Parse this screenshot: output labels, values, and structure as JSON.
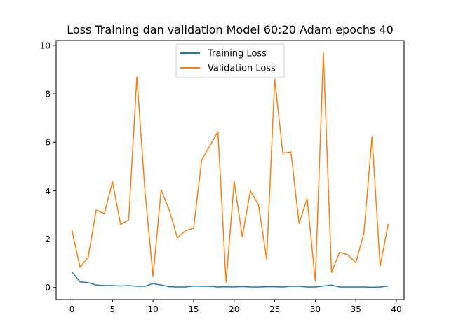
{
  "chart_data": {
    "type": "line",
    "title": "Loss Training dan validation Model 60:20 Adam epochs 40",
    "xlabel": "",
    "ylabel": "",
    "xlim": [
      -1.95,
      40.95
    ],
    "ylim": [
      -0.5,
      10.2
    ],
    "xticks": [
      0,
      5,
      10,
      15,
      20,
      25,
      30,
      35,
      40
    ],
    "yticks": [
      0,
      2,
      4,
      6,
      8,
      10
    ],
    "grid": false,
    "legend": "upper center",
    "x": [
      0,
      1,
      2,
      3,
      4,
      5,
      6,
      7,
      8,
      9,
      10,
      11,
      12,
      13,
      14,
      15,
      16,
      17,
      18,
      19,
      20,
      21,
      22,
      23,
      24,
      25,
      26,
      27,
      28,
      29,
      30,
      31,
      32,
      33,
      34,
      35,
      36,
      37,
      38,
      39
    ],
    "series": [
      {
        "name": "Training Loss",
        "color": "#1f77b4",
        "values": [
          0.64,
          0.23,
          0.2,
          0.1,
          0.08,
          0.08,
          0.06,
          0.08,
          0.05,
          0.05,
          0.16,
          0.1,
          0.03,
          0.02,
          0.02,
          0.06,
          0.05,
          0.05,
          0.02,
          0.03,
          0.02,
          0.04,
          0.02,
          0.02,
          0.03,
          0.03,
          0.02,
          0.05,
          0.05,
          0.02,
          0.02,
          0.06,
          0.1,
          0.02,
          0.02,
          0.02,
          0.02,
          0.01,
          0.02,
          0.06
        ]
      },
      {
        "name": "Validation Loss",
        "color": "#ff7f0e",
        "values": [
          2.36,
          0.83,
          1.25,
          3.2,
          3.05,
          4.37,
          2.6,
          2.8,
          8.7,
          4.0,
          0.45,
          4.03,
          3.2,
          2.05,
          2.35,
          2.45,
          5.28,
          5.85,
          6.43,
          0.22,
          4.38,
          2.1,
          4.0,
          3.42,
          1.17,
          8.6,
          5.55,
          5.6,
          2.65,
          3.68,
          0.27,
          9.68,
          0.62,
          1.45,
          1.35,
          1.02,
          2.25,
          6.23,
          0.88,
          2.63
        ]
      }
    ]
  }
}
